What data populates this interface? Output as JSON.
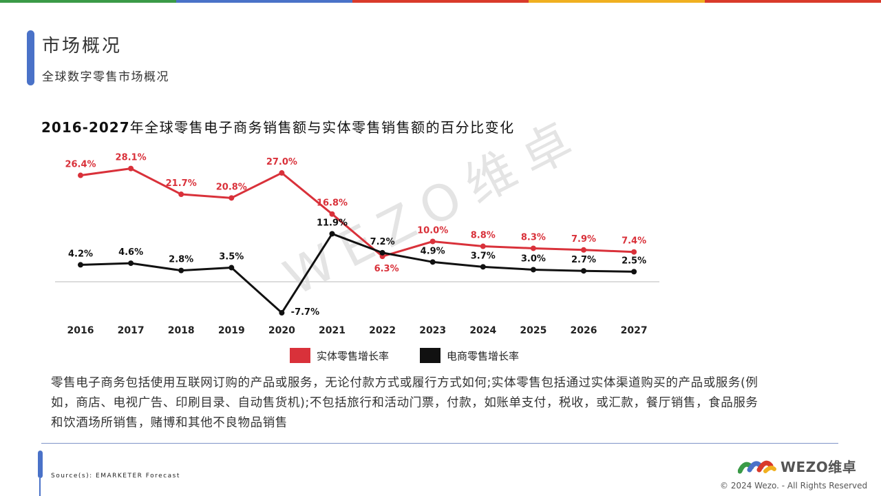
{
  "theme": {
    "stripe_colors": [
      "#3a9a47",
      "#4a72c8",
      "#d93a2b",
      "#f0b020",
      "#d93a2b"
    ],
    "accent": "#4a72c8",
    "series_colors": [
      "#d9313a",
      "#111111"
    ]
  },
  "header": {
    "title": "市场概况",
    "subtitle": "全球数字零售市场概况"
  },
  "chart_heading": {
    "years": "2016-2027",
    "text": "年全球零售电子商务销售额与实体零售销售额的百分比变化"
  },
  "watermark": "WEZO维卓",
  "legend": {
    "physical": "实体零售增长率",
    "ecommerce": "电商零售增长率"
  },
  "chart_data": {
    "type": "line",
    "x": [
      "2016",
      "2017",
      "2018",
      "2019",
      "2020",
      "2021",
      "2022",
      "2023",
      "2024",
      "2025",
      "2026",
      "2027"
    ],
    "series": [
      {
        "name": "实体零售增长率",
        "color": "#d9313a",
        "values": [
          26.4,
          28.1,
          21.7,
          20.8,
          27.0,
          16.8,
          6.3,
          10.0,
          8.8,
          8.3,
          7.9,
          7.4
        ],
        "labels": [
          "26.4%",
          "28.1%",
          "21.7%",
          "20.8%",
          "27.0%",
          "16.8%",
          "6.3%",
          "10.0%",
          "8.8%",
          "8.3%",
          "7.9%",
          "7.4%"
        ]
      },
      {
        "name": "电商零售增长率",
        "color": "#111111",
        "values": [
          4.2,
          4.6,
          2.8,
          3.5,
          -7.7,
          11.9,
          7.2,
          4.9,
          3.7,
          3.0,
          2.7,
          2.5
        ],
        "labels": [
          "4.2%",
          "4.6%",
          "2.8%",
          "3.5%",
          "-7.7%",
          "11.9%",
          "7.2%",
          "4.9%",
          "3.7%",
          "3.0%",
          "2.7%",
          "2.5%"
        ]
      }
    ],
    "ylim": [
      -8,
      29
    ],
    "grid": false,
    "legend_position": "bottom"
  },
  "description": "零售电子商务包括使用互联网订购的产品或服务，无论付款方式或履行方式如何;实体零售包括通过实体渠道购买的产品或服务(例如，商店、电视广告、印刷目录、自动售货机);不包括旅行和活动门票，付款，如账单支付，税收，或汇款，餐厅销售，食品服务和饮酒场所销售，赌博和其他不良物品销售",
  "footer": {
    "source": "Source(s): EMARKETER Forecast",
    "logo_text": "WEZO维卓",
    "copyright": "© 2024 Wezo. - All Rights Reserved"
  }
}
